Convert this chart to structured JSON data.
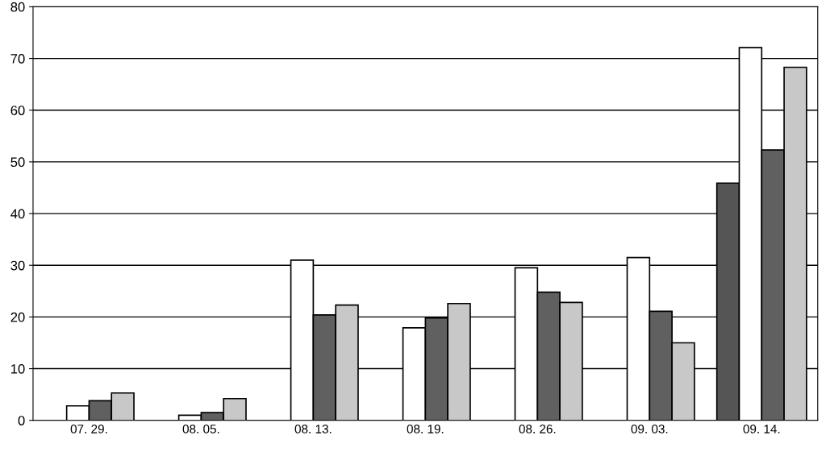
{
  "chart_data": {
    "type": "bar",
    "categories": [
      "07. 29.",
      "08. 05.",
      "08. 13.",
      "08. 19.",
      "08. 26.",
      "09. 03.",
      "09. 14."
    ],
    "series": [
      {
        "color": "#555555",
        "values": [
          null,
          null,
          null,
          null,
          null,
          null,
          45.9
        ]
      },
      {
        "color": "#ffffff",
        "values": [
          2.8,
          1.0,
          31.0,
          17.9,
          29.5,
          31.5,
          72.1
        ]
      },
      {
        "color": "#606060",
        "values": [
          3.8,
          1.5,
          20.4,
          19.8,
          24.8,
          21.1,
          52.3
        ]
      },
      {
        "color": "#c8c8c8",
        "values": [
          5.3,
          4.2,
          22.3,
          22.6,
          22.8,
          15.0,
          68.3
        ]
      }
    ],
    "ylim": [
      0,
      80
    ],
    "yticks": [
      0,
      10,
      20,
      30,
      40,
      50,
      60,
      70,
      80
    ],
    "grid": "y",
    "legend": false
  }
}
